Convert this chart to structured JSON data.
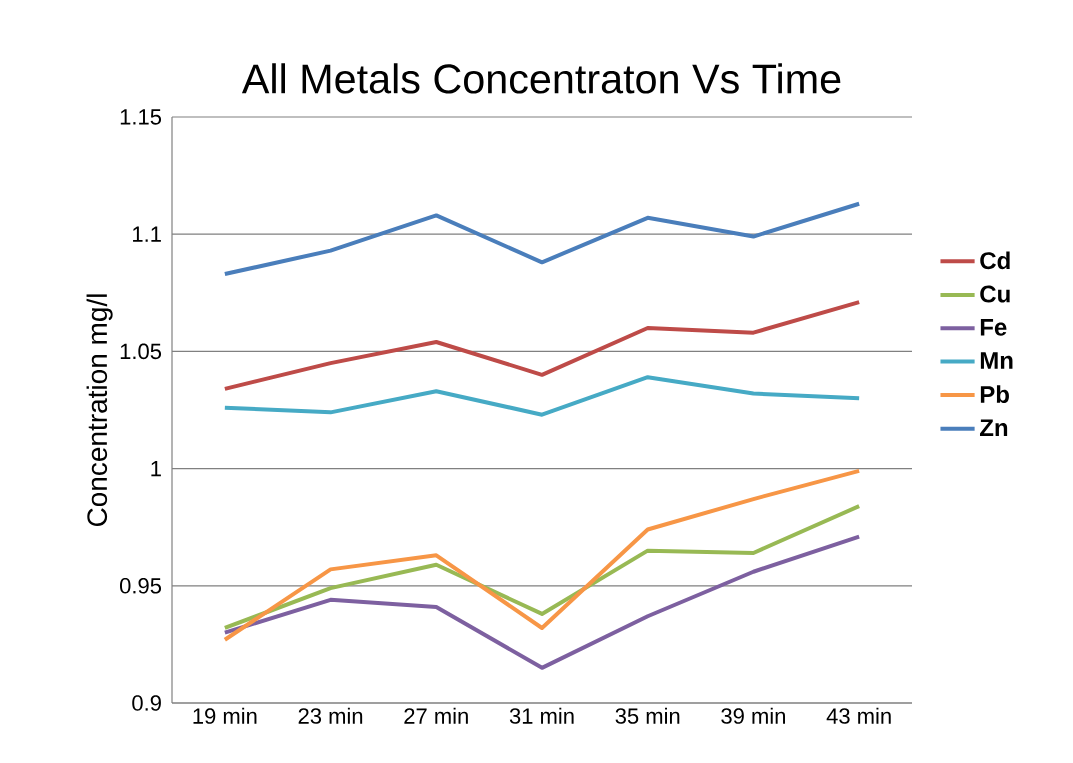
{
  "chart_data": {
    "type": "line",
    "title": "All Metals Concentraton Vs Time",
    "ylabel": "Concentration mg/l",
    "categories": [
      "19 min",
      "23 min",
      "27 min",
      "31 min",
      "35 min",
      "39 min",
      "43 min"
    ],
    "series": [
      {
        "name": "Cd",
        "color": "#be4b48",
        "values": [
          1.034,
          1.045,
          1.054,
          1.04,
          1.06,
          1.058,
          1.071
        ]
      },
      {
        "name": "Cu",
        "color": "#98b954",
        "values": [
          0.932,
          0.949,
          0.959,
          0.938,
          0.965,
          0.964,
          0.984
        ]
      },
      {
        "name": "Fe",
        "color": "#7d60a0",
        "values": [
          0.93,
          0.944,
          0.941,
          0.915,
          0.937,
          0.956,
          0.971
        ]
      },
      {
        "name": "Mn",
        "color": "#46aac5",
        "values": [
          1.026,
          1.024,
          1.033,
          1.023,
          1.039,
          1.032,
          1.03
        ]
      },
      {
        "name": "Pb",
        "color": "#f79646",
        "values": [
          0.927,
          0.957,
          0.963,
          0.932,
          0.974,
          0.987,
          0.999
        ]
      },
      {
        "name": "Zn",
        "color": "#4a7ebb",
        "values": [
          1.083,
          1.093,
          1.108,
          1.088,
          1.107,
          1.099,
          1.113
        ]
      }
    ],
    "ylim": [
      0.9,
      1.15
    ],
    "yticks": [
      {
        "value": 0.9,
        "label": "0.9"
      },
      {
        "value": 0.95,
        "label": "0.95"
      },
      {
        "value": 1.0,
        "label": "1"
      },
      {
        "value": 1.05,
        "label": "1.05"
      },
      {
        "value": 1.1,
        "label": "1.1"
      },
      {
        "value": 1.15,
        "label": "1.15"
      }
    ],
    "grid": "y",
    "legend": "right",
    "marker": "none",
    "line_style": "solid"
  }
}
